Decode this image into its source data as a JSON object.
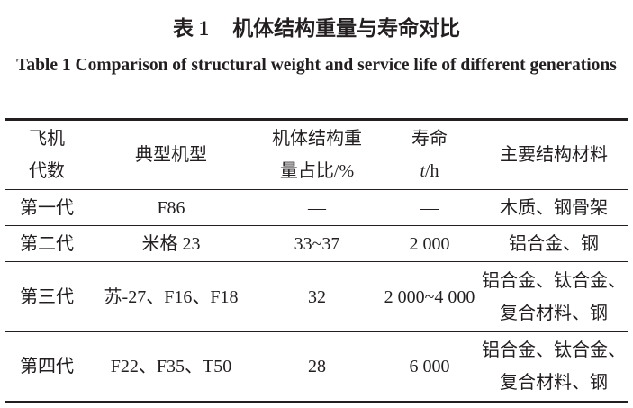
{
  "caption": {
    "number_cn": "表 1",
    "title_cn": "机体结构重量与寿命对比",
    "title_en": "Table 1    Comparison of structural weight and service life of different generations"
  },
  "table": {
    "headers": [
      [
        "飞机",
        "代数"
      ],
      [
        "典型机型"
      ],
      [
        "机体结构重",
        "量占比/%"
      ],
      [
        "寿命",
        "t",
        "/h"
      ],
      [
        "主要结构材料"
      ]
    ],
    "rows": [
      {
        "generation": "第一代",
        "models": "F86",
        "weight_ratio": "—",
        "life": "—",
        "materials": [
          "木质、钢骨架"
        ]
      },
      {
        "generation": "第二代",
        "models": "米格 23",
        "weight_ratio": "33~37",
        "life": "2 000",
        "materials": [
          "铝合金、钢"
        ]
      },
      {
        "generation": "第三代",
        "models": "苏-27、F16、F18",
        "weight_ratio": "32",
        "life": "2 000~4 000",
        "materials": [
          "铝合金、钛合金、",
          "复合材料、钢"
        ]
      },
      {
        "generation": "第四代",
        "models": "F22、F35、T50",
        "weight_ratio": "28",
        "life": "6 000",
        "materials": [
          "铝合金、钛合金、",
          "复合材料、钢"
        ]
      }
    ]
  }
}
